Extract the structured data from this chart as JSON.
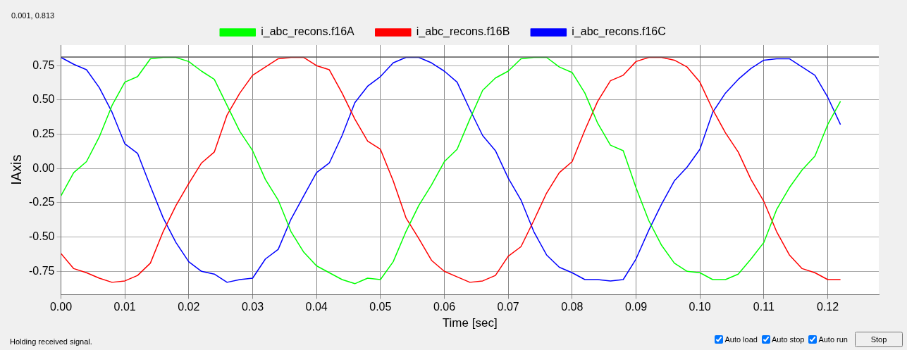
{
  "chart_data": {
    "type": "line",
    "xlabel": "Time [sec]",
    "ylabel": "IAxis",
    "annotations": [
      "0.001, 0.813",
      "Holding received signal.",
      "Auto load",
      "Auto stop",
      "Auto run",
      "Stop"
    ],
    "x": [
      0,
      0.002,
      0.004,
      0.006,
      0.008,
      0.01,
      0.012,
      0.014,
      0.016,
      0.018,
      0.02,
      0.022,
      0.024,
      0.026,
      0.028,
      0.03,
      0.032,
      0.034,
      0.036,
      0.038,
      0.04,
      0.042,
      0.044,
      0.046,
      0.048,
      0.05,
      0.052,
      0.054,
      0.056,
      0.058,
      0.06,
      0.062,
      0.064,
      0.066,
      0.068,
      0.07,
      0.072,
      0.074,
      0.076,
      0.078,
      0.08,
      0.082,
      0.084,
      0.086,
      0.088,
      0.09,
      0.092,
      0.094,
      0.096,
      0.098,
      0.1,
      0.102,
      0.104,
      0.106,
      0.108,
      0.11,
      0.112,
      0.114,
      0.116,
      0.118,
      0.12,
      0.122
    ],
    "series": [
      {
        "name": "i_abc_recons.f16A",
        "color": "#00ff00",
        "values": [
          -0.2,
          -0.03,
          0.05,
          0.23,
          0.46,
          0.63,
          0.67,
          0.8,
          0.81,
          0.81,
          0.78,
          0.71,
          0.65,
          0.46,
          0.27,
          0.13,
          -0.08,
          -0.23,
          -0.46,
          -0.61,
          -0.71,
          -0.76,
          -0.81,
          -0.84,
          -0.8,
          -0.81,
          -0.68,
          -0.46,
          -0.27,
          -0.12,
          0.05,
          0.14,
          0.36,
          0.57,
          0.66,
          0.71,
          0.8,
          0.81,
          0.81,
          0.74,
          0.7,
          0.55,
          0.33,
          0.17,
          0.13,
          -0.14,
          -0.38,
          -0.56,
          -0.69,
          -0.75,
          -0.76,
          -0.81,
          -0.81,
          -0.77,
          -0.66,
          -0.54,
          -0.3,
          -0.14,
          -0.01,
          0.09,
          0.32,
          0.49
        ]
      },
      {
        "name": "i_abc_recons.f16B",
        "color": "#ff0000",
        "values": [
          -0.62,
          -0.73,
          -0.76,
          -0.8,
          -0.83,
          -0.82,
          -0.78,
          -0.69,
          -0.46,
          -0.27,
          -0.11,
          0.04,
          0.12,
          0.39,
          0.55,
          0.68,
          0.74,
          0.8,
          0.81,
          0.81,
          0.75,
          0.72,
          0.55,
          0.36,
          0.2,
          0.14,
          -0.09,
          -0.36,
          -0.51,
          -0.67,
          -0.75,
          -0.79,
          -0.83,
          -0.82,
          -0.78,
          -0.64,
          -0.57,
          -0.38,
          -0.18,
          -0.03,
          0.05,
          0.28,
          0.49,
          0.64,
          0.68,
          0.78,
          0.81,
          0.81,
          0.79,
          0.74,
          0.63,
          0.43,
          0.26,
          0.12,
          -0.08,
          -0.24,
          -0.46,
          -0.63,
          -0.73,
          -0.76,
          -0.81,
          -0.81
        ]
      },
      {
        "name": "i_abc_recons.f16C",
        "color": "#0000ff",
        "values": [
          0.81,
          0.76,
          0.72,
          0.59,
          0.41,
          0.18,
          0.11,
          -0.13,
          -0.36,
          -0.54,
          -0.68,
          -0.75,
          -0.77,
          -0.83,
          -0.81,
          -0.8,
          -0.66,
          -0.59,
          -0.37,
          -0.2,
          -0.03,
          0.04,
          0.24,
          0.48,
          0.6,
          0.67,
          0.77,
          0.81,
          0.81,
          0.77,
          0.71,
          0.63,
          0.43,
          0.24,
          0.13,
          -0.07,
          -0.23,
          -0.46,
          -0.63,
          -0.72,
          -0.76,
          -0.81,
          -0.81,
          -0.82,
          -0.81,
          -0.66,
          -0.45,
          -0.26,
          -0.09,
          0.01,
          0.14,
          0.41,
          0.55,
          0.65,
          0.73,
          0.79,
          0.8,
          0.8,
          0.74,
          0.68,
          0.52,
          0.32
        ]
      }
    ],
    "xlim": [
      0,
      0.128
    ],
    "xticks": [
      {
        "value": 0,
        "label": "0.00"
      },
      {
        "value": 0.01,
        "label": "0.01"
      },
      {
        "value": 0.02,
        "label": "0.02"
      },
      {
        "value": 0.03,
        "label": "0.03"
      },
      {
        "value": 0.04,
        "label": "0.04"
      },
      {
        "value": 0.05,
        "label": "0.05"
      },
      {
        "value": 0.06,
        "label": "0.06"
      },
      {
        "value": 0.07,
        "label": "0.07"
      },
      {
        "value": 0.08,
        "label": "0.08"
      },
      {
        "value": 0.09,
        "label": "0.09"
      },
      {
        "value": 0.1,
        "label": "0.10"
      },
      {
        "value": 0.11,
        "label": "0.11"
      },
      {
        "value": 0.12,
        "label": "0.12"
      }
    ],
    "ylim": [
      -0.92,
      0.9
    ],
    "yticks": [
      {
        "value": -0.75,
        "label": "-0.75"
      },
      {
        "value": -0.5,
        "label": "-0.50"
      },
      -0.25,
      {
        "value": 0,
        "label": "0.00"
      },
      0.25,
      {
        "value": 0.5,
        "label": "0.50"
      },
      0.75
    ],
    "ref_lines": [
      {
        "axis": "y",
        "value": 0.813,
        "color": "#555555"
      }
    ],
    "grid": true,
    "legend": "top",
    "marker": "none",
    "line_style": "solid"
  }
}
